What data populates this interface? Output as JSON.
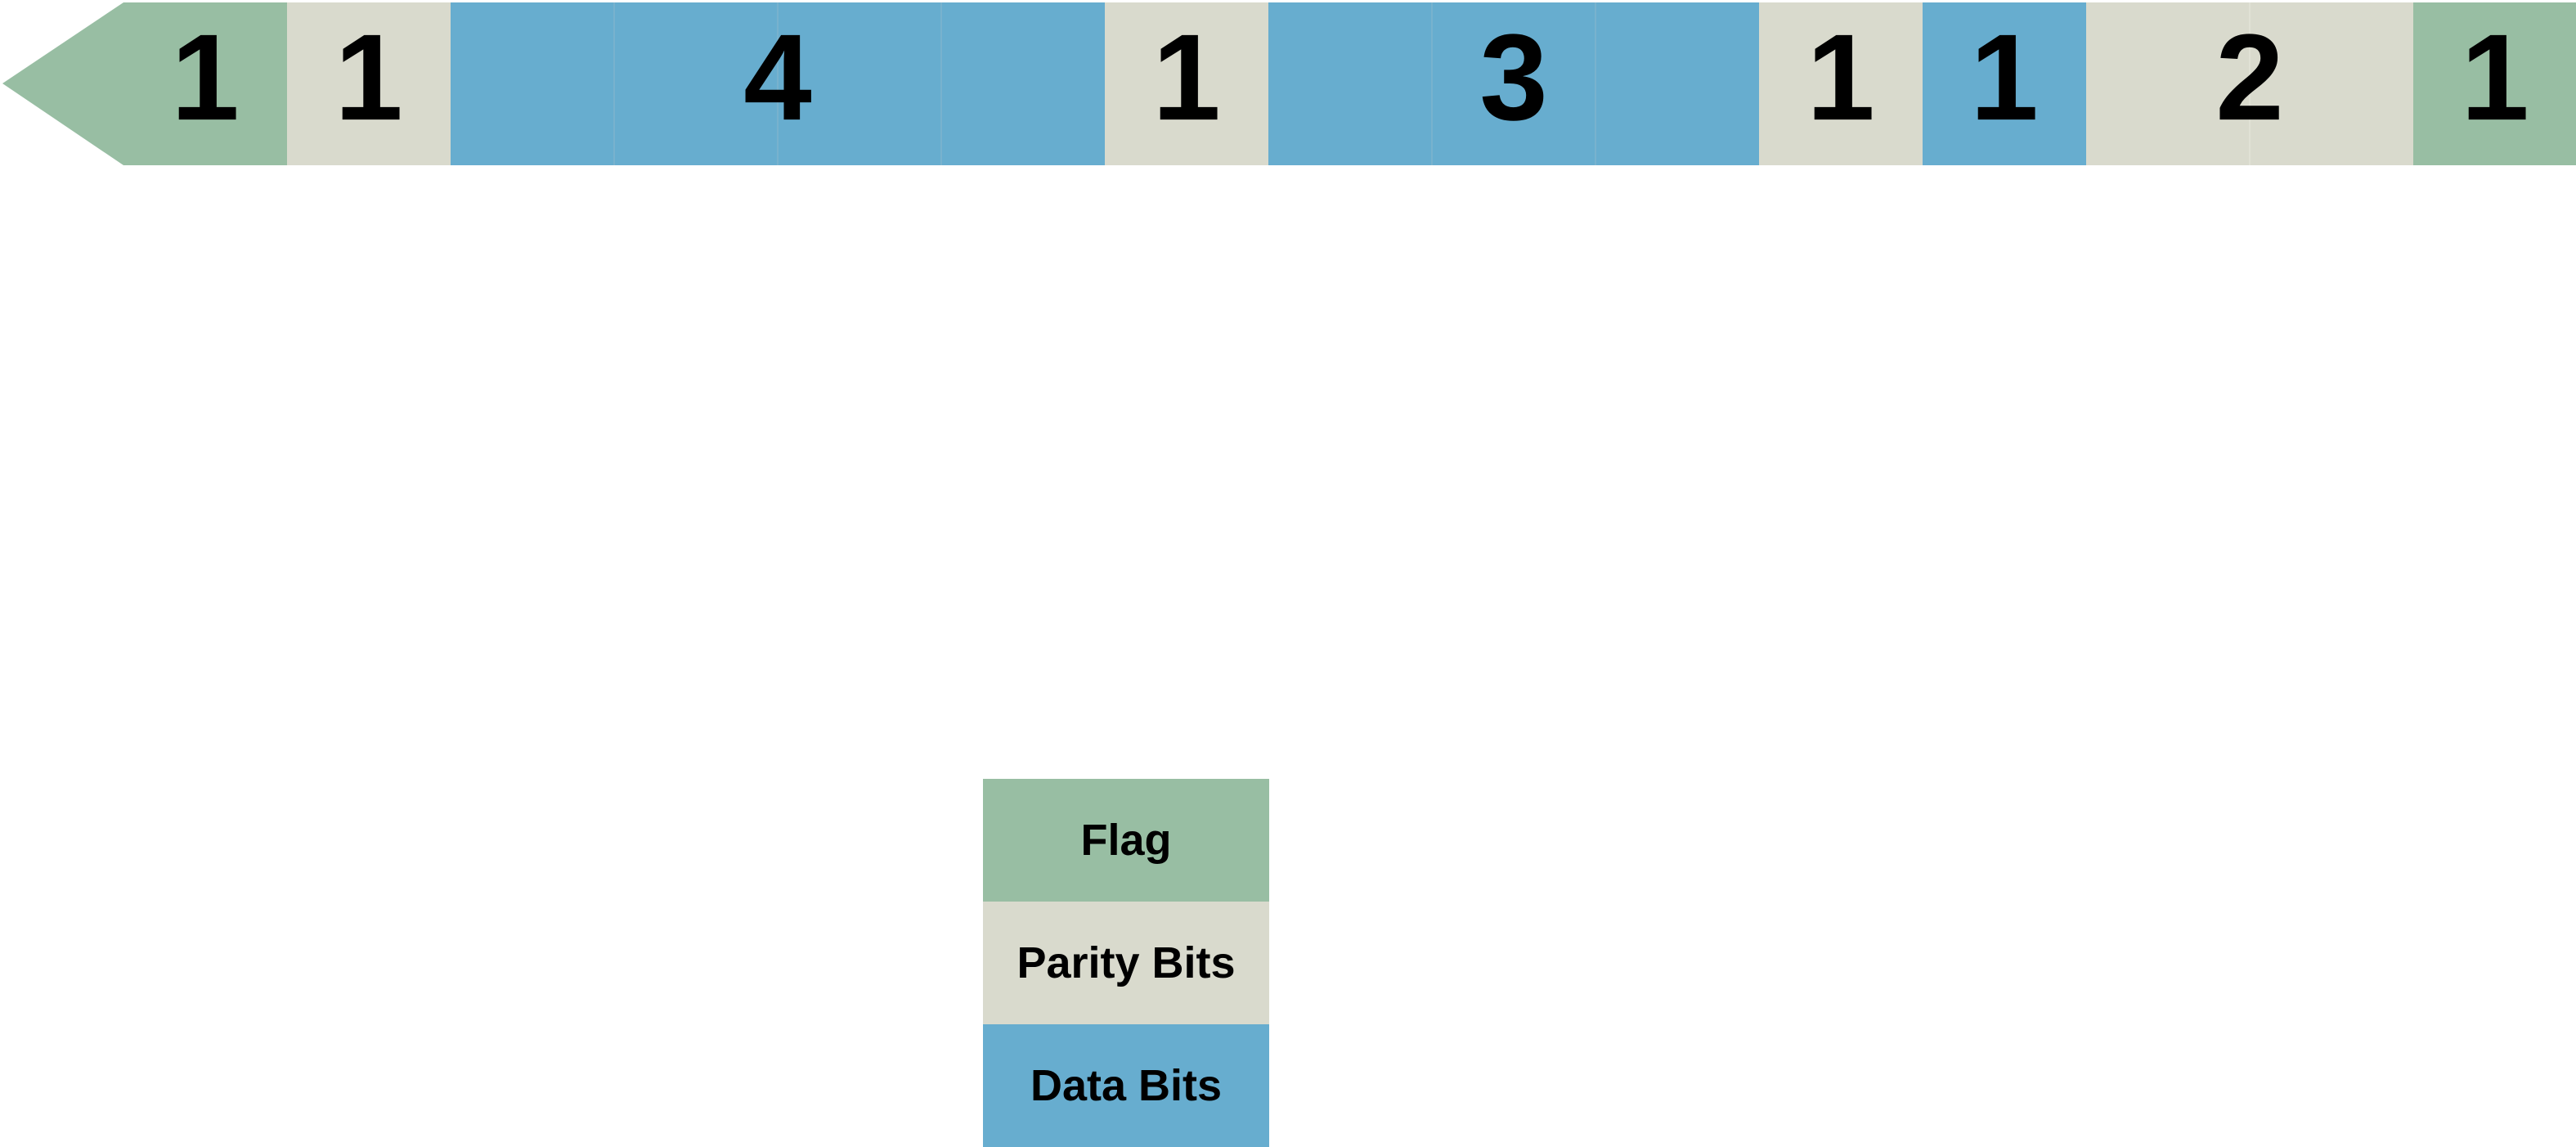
{
  "frame": {
    "direction": "left",
    "segments": [
      {
        "type": "flag",
        "label": "1",
        "span": 1
      },
      {
        "type": "parity",
        "label": "1",
        "span": 1
      },
      {
        "type": "data",
        "label": "4",
        "span": 4
      },
      {
        "type": "parity",
        "label": "1",
        "span": 1
      },
      {
        "type": "data",
        "label": "3",
        "span": 3
      },
      {
        "type": "parity",
        "label": "1",
        "span": 1
      },
      {
        "type": "data",
        "label": "1",
        "span": 1
      },
      {
        "type": "parity",
        "label": "2",
        "span": 2
      },
      {
        "type": "flag",
        "label": "1",
        "span": 1
      }
    ]
  },
  "legend": {
    "items": [
      {
        "type": "flag",
        "label": "Flag"
      },
      {
        "type": "parity",
        "label": "Parity Bits"
      },
      {
        "type": "data",
        "label": "Data Bits"
      }
    ]
  },
  "colors": {
    "flag": "#98bea3",
    "parity": "#d9dacd",
    "data": "#67adcf",
    "divider": "#7fb4cd",
    "text": "#000000"
  }
}
